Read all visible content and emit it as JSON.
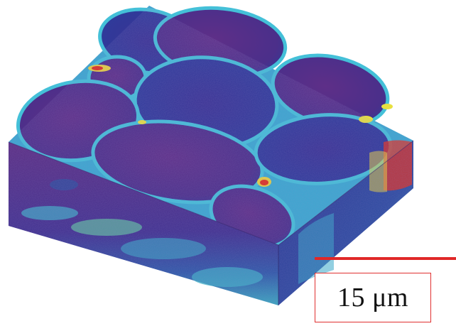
{
  "scale_bar": {
    "label": "15 μm",
    "length_um": 15,
    "color": "#e02828"
  },
  "colors": {
    "cell_interior": "#5a2f86",
    "cell_deep": "#2a2f8f",
    "boundary_cyan": "#38b8d8",
    "boundary_yellow": "#e8e040",
    "boundary_red": "#e03020",
    "side_dark": "#3a2872"
  }
}
